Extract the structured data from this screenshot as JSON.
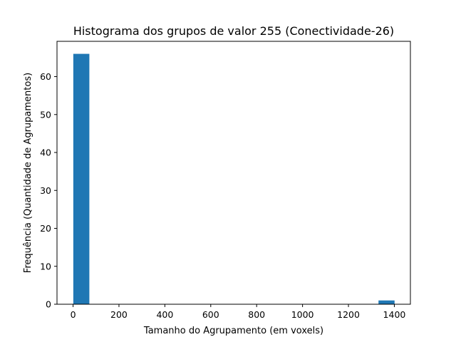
{
  "chart_data": {
    "type": "bar",
    "title": "Histograma dos grupos de valor 255 (Conectividade-26)",
    "xlabel": "Tamanho do Agrupamento (em voxels)",
    "ylabel": "Frequência (Quantidade de Agrupamentos)",
    "xlim": [
      -70,
      1470
    ],
    "ylim": [
      0,
      69.3
    ],
    "xticks": [
      0,
      200,
      400,
      600,
      800,
      1000,
      1200,
      1400
    ],
    "yticks": [
      0,
      10,
      20,
      30,
      40,
      50,
      60
    ],
    "bins": [
      {
        "x0": 1,
        "x1": 71,
        "count": 66
      },
      {
        "x0": 71,
        "x1": 141,
        "count": 0
      },
      {
        "x0": 141,
        "x1": 211,
        "count": 0
      },
      {
        "x0": 211,
        "x1": 281,
        "count": 0
      },
      {
        "x0": 281,
        "x1": 351,
        "count": 0
      },
      {
        "x0": 351,
        "x1": 421,
        "count": 0
      },
      {
        "x0": 421,
        "x1": 491,
        "count": 0
      },
      {
        "x0": 491,
        "x1": 561,
        "count": 0
      },
      {
        "x0": 561,
        "x1": 631,
        "count": 0
      },
      {
        "x0": 631,
        "x1": 701,
        "count": 0
      },
      {
        "x0": 701,
        "x1": 771,
        "count": 0
      },
      {
        "x0": 771,
        "x1": 841,
        "count": 0
      },
      {
        "x0": 841,
        "x1": 911,
        "count": 0
      },
      {
        "x0": 911,
        "x1": 981,
        "count": 0
      },
      {
        "x0": 981,
        "x1": 1051,
        "count": 0
      },
      {
        "x0": 1051,
        "x1": 1121,
        "count": 0
      },
      {
        "x0": 1121,
        "x1": 1191,
        "count": 0
      },
      {
        "x0": 1191,
        "x1": 1261,
        "count": 0
      },
      {
        "x0": 1261,
        "x1": 1331,
        "count": 0
      },
      {
        "x0": 1331,
        "x1": 1401,
        "count": 1
      }
    ],
    "bar_color": "#1f77b4",
    "grid": false,
    "legend": false
  }
}
